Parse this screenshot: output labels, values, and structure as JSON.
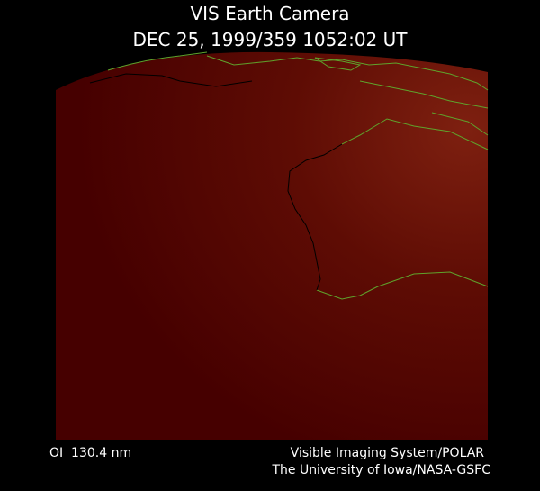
{
  "header": {
    "title": "VIS Earth Camera",
    "timestamp": "DEC 25, 1999/359 1052:02 UT"
  },
  "footer": {
    "filter": "OI  130.4 nm",
    "instrument": "Visible Imaging System/POLAR",
    "credit": "The University of Iowa/NASA-GSFC"
  }
}
